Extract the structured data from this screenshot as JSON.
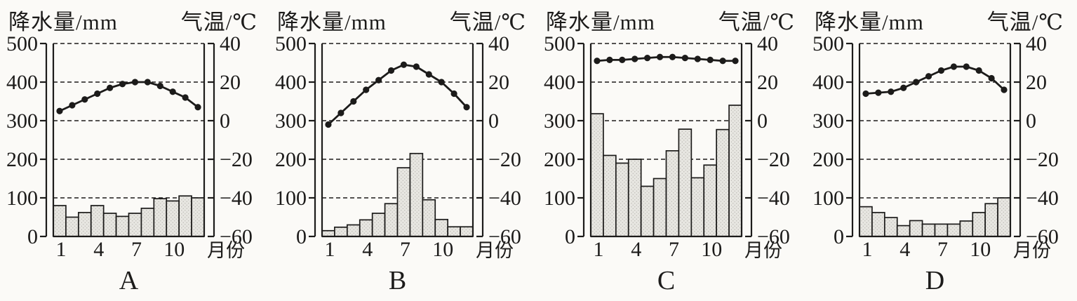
{
  "page": {
    "description_note": "Four monthly climate charts comparing precipitation (bars) and temperature (line)"
  },
  "colors": {
    "paper": "#fbfaf7",
    "ink": "#1c1b1a",
    "bar_fill": "#e7e6e1",
    "bar_dot": "#b9b7b1",
    "bar_stroke": "#1c1b1a",
    "line_color": "#1c1b1a"
  },
  "chart_data": [
    {
      "type": "bar",
      "title": "A",
      "ylabel_left": "降水量/mm",
      "ylabel_right": "气温/℃",
      "xlabel": "月份",
      "months": [
        1,
        2,
        3,
        4,
        5,
        6,
        7,
        8,
        9,
        10,
        11,
        12
      ],
      "x_tick_months": [
        1,
        4,
        7,
        10
      ],
      "x_tick_labels": [
        "1",
        "4",
        "7",
        "10"
      ],
      "series": [
        {
          "name": "降水量",
          "unit": "mm",
          "values": [
            80,
            50,
            62,
            80,
            60,
            52,
            60,
            73,
            98,
            92,
            105,
            100
          ]
        },
        {
          "name": "气温",
          "unit": "℃",
          "values": [
            5,
            8,
            11,
            14,
            17,
            19,
            20,
            20,
            18,
            15,
            12,
            7
          ]
        }
      ],
      "ylim_left": [
        0,
        500
      ],
      "yticks_left": [
        "500",
        "400",
        "300",
        "200",
        "100",
        "0"
      ],
      "ylim_right": [
        -60,
        40
      ],
      "yticks_right": [
        "40",
        "20",
        "0",
        "−20",
        "−40",
        "−60"
      ],
      "grid": "dashed horizontal",
      "legend": "none"
    },
    {
      "type": "bar",
      "title": "B",
      "ylabel_left": "降水量/mm",
      "ylabel_right": "气温/℃",
      "xlabel": "月份",
      "months": [
        1,
        2,
        3,
        4,
        5,
        6,
        7,
        8,
        9,
        10,
        11,
        12
      ],
      "x_tick_months": [
        1,
        4,
        7,
        10
      ],
      "x_tick_labels": [
        "1",
        "4",
        "7",
        "10"
      ],
      "series": [
        {
          "name": "降水量",
          "unit": "mm",
          "values": [
            15,
            24,
            30,
            43,
            60,
            85,
            178,
            215,
            95,
            44,
            25,
            25
          ]
        },
        {
          "name": "气温",
          "unit": "℃",
          "values": [
            -2,
            4,
            10,
            16,
            21,
            26,
            29,
            28,
            24,
            20,
            14,
            7
          ]
        }
      ],
      "ylim_left": [
        0,
        500
      ],
      "yticks_left": [
        "500",
        "400",
        "300",
        "200",
        "100",
        "0"
      ],
      "ylim_right": [
        -60,
        40
      ],
      "yticks_right": [
        "40",
        "20",
        "0",
        "−20",
        "−40",
        "−60"
      ],
      "grid": "dashed horizontal",
      "legend": "none"
    },
    {
      "type": "bar",
      "title": "C",
      "ylabel_left": "降水量/mm",
      "ylabel_right": "气温/℃",
      "xlabel": "月份",
      "months": [
        1,
        2,
        3,
        4,
        5,
        6,
        7,
        8,
        9,
        10,
        11,
        12
      ],
      "x_tick_months": [
        1,
        4,
        7,
        10
      ],
      "x_tick_labels": [
        "1",
        "4",
        "7",
        "10"
      ],
      "series": [
        {
          "name": "降水量",
          "unit": "mm",
          "values": [
            318,
            210,
            190,
            200,
            130,
            150,
            222,
            278,
            152,
            185,
            277,
            340
          ]
        },
        {
          "name": "气温",
          "unit": "℃",
          "values": [
            31,
            31.5,
            31.5,
            32,
            32.5,
            33,
            33,
            32.5,
            32,
            31.5,
            31,
            31
          ]
        }
      ],
      "ylim_left": [
        0,
        500
      ],
      "yticks_left": [
        "500",
        "400",
        "300",
        "200",
        "100",
        "0"
      ],
      "ylim_right": [
        -60,
        40
      ],
      "yticks_right": [
        "40",
        "20",
        "0",
        "−20",
        "−40",
        "−60"
      ],
      "grid": "dashed horizontal",
      "legend": "none"
    },
    {
      "type": "bar",
      "title": "D",
      "ylabel_left": "降水量/mm",
      "ylabel_right": "气温/℃",
      "xlabel": "月份",
      "months": [
        1,
        2,
        3,
        4,
        5,
        6,
        7,
        8,
        9,
        10,
        11,
        12
      ],
      "x_tick_months": [
        1,
        4,
        7,
        10
      ],
      "x_tick_labels": [
        "1",
        "4",
        "7",
        "10"
      ],
      "series": [
        {
          "name": "降水量",
          "unit": "mm",
          "values": [
            77,
            62,
            49,
            28,
            41,
            32,
            32,
            32,
            40,
            62,
            85,
            100
          ]
        },
        {
          "name": "气温",
          "unit": "℃",
          "values": [
            14,
            14.5,
            15,
            17,
            20,
            23,
            26,
            28,
            28,
            26,
            22,
            16
          ]
        }
      ],
      "ylim_left": [
        0,
        500
      ],
      "yticks_left": [
        "500",
        "400",
        "300",
        "200",
        "100",
        "0"
      ],
      "ylim_right": [
        -60,
        40
      ],
      "yticks_right": [
        "40",
        "20",
        "0",
        "−20",
        "−40",
        "−60"
      ],
      "grid": "dashed horizontal",
      "legend": "none"
    }
  ]
}
